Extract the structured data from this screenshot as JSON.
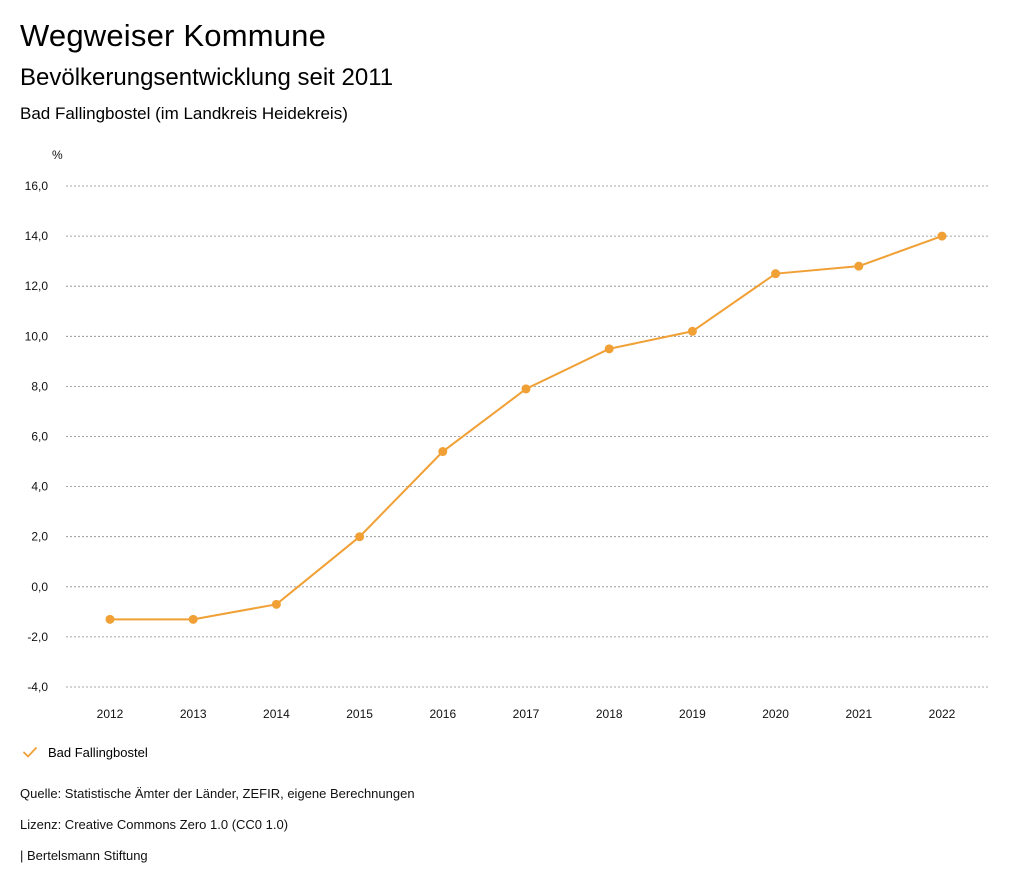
{
  "header": {
    "title": "Wegweiser Kommune",
    "subtitle": "Bevölkerungsentwicklung seit 2011",
    "region": "Bad Fallingbostel (im Landkreis Heidekreis)"
  },
  "chart_data": {
    "type": "line",
    "title": "Bevölkerungsentwicklung seit 2011",
    "ylabel": "%",
    "xlabel": "",
    "ylim": [
      -4,
      16
    ],
    "yticks": [
      -4,
      -2,
      0,
      2,
      4,
      6,
      8,
      10,
      12,
      14,
      16
    ],
    "ytick_labels": [
      "-4,0",
      "-2,0",
      "0,0",
      "2,0",
      "4,0",
      "6,0",
      "8,0",
      "10,0",
      "12,0",
      "14,0",
      "16,0"
    ],
    "categories": [
      "2012",
      "2013",
      "2014",
      "2015",
      "2016",
      "2017",
      "2018",
      "2019",
      "2020",
      "2021",
      "2022"
    ],
    "series": [
      {
        "name": "Bad Fallingbostel",
        "color": "#f0a035",
        "values": [
          -1.3,
          -1.3,
          -0.7,
          2.0,
          5.4,
          7.9,
          9.5,
          10.2,
          12.5,
          12.8,
          14.0
        ]
      }
    ],
    "grid": true,
    "legend": "bottom-left"
  },
  "legend": {
    "label": "Bad Fallingbostel",
    "color": "#f0a035",
    "icon": "check-icon"
  },
  "footer": {
    "source": "Quelle: Statistische Ämter der Länder, ZEFIR, eigene Berechnungen",
    "license": "Lizenz: Creative Commons Zero 1.0 (CC0 1.0)",
    "publisher": "| Bertelsmann Stiftung"
  }
}
